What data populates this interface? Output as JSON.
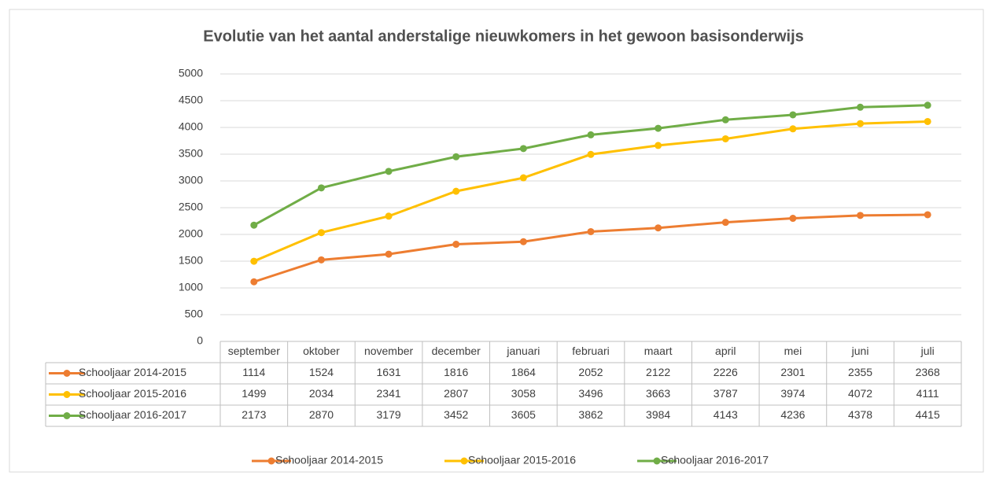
{
  "chart_data": {
    "type": "line",
    "title": "Evolutie van het aantal anderstalige nieuwkomers in het gewoon basisonderwijs",
    "categories": [
      "september",
      "oktober",
      "november",
      "december",
      "januari",
      "februari",
      "maart",
      "april",
      "mei",
      "juni",
      "juli"
    ],
    "series": [
      {
        "name": "Schooljaar 2014-2015",
        "color": "#ED7D31",
        "values": [
          1114,
          1524,
          1631,
          1816,
          1864,
          2052,
          2122,
          2226,
          2301,
          2355,
          2368
        ]
      },
      {
        "name": "Schooljaar 2015-2016",
        "color": "#FFC000",
        "values": [
          1499,
          2034,
          2341,
          2807,
          3058,
          3496,
          3663,
          3787,
          3974,
          4072,
          4111
        ]
      },
      {
        "name": "Schooljaar 2016-2017",
        "color": "#70AD47",
        "values": [
          2173,
          2870,
          3179,
          3452,
          3605,
          3862,
          3984,
          4143,
          4236,
          4378,
          4415
        ]
      }
    ],
    "ylim": [
      0,
      5000
    ],
    "yticks": [
      0,
      500,
      1000,
      1500,
      2000,
      2500,
      3000,
      3500,
      4000,
      4500,
      5000
    ],
    "grid": true,
    "legend": "bottom"
  }
}
